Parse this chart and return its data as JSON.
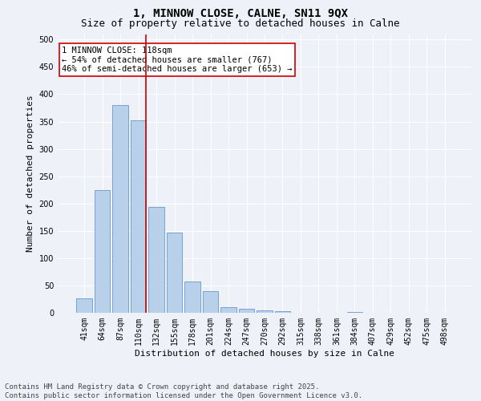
{
  "title": "1, MINNOW CLOSE, CALNE, SN11 9QX",
  "subtitle": "Size of property relative to detached houses in Calne",
  "xlabel": "Distribution of detached houses by size in Calne",
  "ylabel": "Number of detached properties",
  "categories": [
    "41sqm",
    "64sqm",
    "87sqm",
    "110sqm",
    "132sqm",
    "155sqm",
    "178sqm",
    "201sqm",
    "224sqm",
    "247sqm",
    "270sqm",
    "292sqm",
    "315sqm",
    "338sqm",
    "361sqm",
    "384sqm",
    "407sqm",
    "429sqm",
    "452sqm",
    "475sqm",
    "498sqm"
  ],
  "values": [
    26,
    225,
    380,
    352,
    193,
    147,
    57,
    40,
    11,
    8,
    5,
    3,
    0,
    0,
    0,
    1,
    0,
    0,
    0,
    0,
    0
  ],
  "bar_color": "#b8d0ea",
  "bar_edge_color": "#6699cc",
  "vline_color": "#cc0000",
  "annotation_text": "1 MINNOW CLOSE: 118sqm\n← 54% of detached houses are smaller (767)\n46% of semi-detached houses are larger (653) →",
  "annotation_box_color": "#ffffff",
  "annotation_box_edge": "#cc0000",
  "ylim": [
    0,
    510
  ],
  "yticks": [
    0,
    50,
    100,
    150,
    200,
    250,
    300,
    350,
    400,
    450,
    500
  ],
  "footer": "Contains HM Land Registry data © Crown copyright and database right 2025.\nContains public sector information licensed under the Open Government Licence v3.0.",
  "background_color": "#eef2f8",
  "grid_color": "#ffffff",
  "title_fontsize": 10,
  "subtitle_fontsize": 9,
  "axis_label_fontsize": 8,
  "tick_fontsize": 7,
  "footer_fontsize": 6.5,
  "annotation_fontsize": 7.5
}
